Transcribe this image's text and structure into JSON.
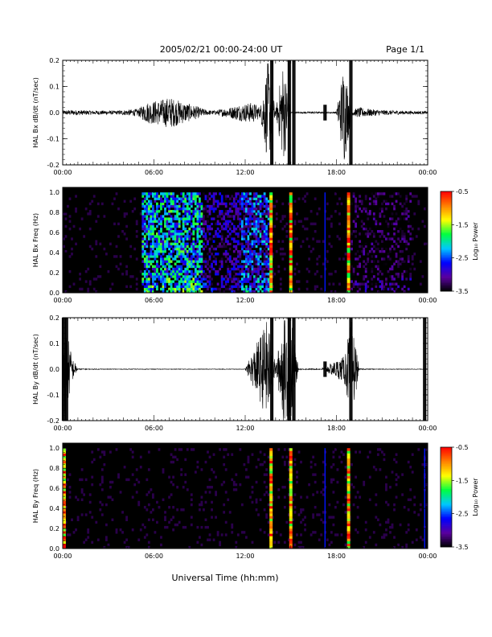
{
  "header": {
    "title": "2005/02/21  00:00-24:00 UT",
    "page": "Page 1/1"
  },
  "xlabel": "Universal Time (hh:mm)",
  "x_ticks": [
    "00:00",
    "06:00",
    "12:00",
    "18:00",
    "00:00"
  ],
  "colorbar": {
    "label": "Log₁₀ Power",
    "ticks": [
      "-0.5",
      "-1.5",
      "-2.5",
      "-3.5"
    ],
    "range": [
      -3.5,
      -0.5
    ],
    "colors": [
      "#000000",
      "#5a00a0",
      "#0000ff",
      "#00c8ff",
      "#00ff40",
      "#ffff00",
      "#ff8000",
      "#ff0000"
    ]
  },
  "chart_data": [
    {
      "type": "line",
      "panel": "bx_dbdt",
      "ylabel": "HAL Bx dB/dt (nT/sec)",
      "xlim_hours": [
        0,
        24
      ],
      "ylim": [
        -0.2,
        0.2
      ],
      "y_ticks": [
        "0.2",
        "0.1",
        "0.0",
        "-0.1",
        "-0.2"
      ],
      "series": [
        {
          "x_hours": [
            0,
            0.5,
            1,
            1.5,
            2,
            2.5,
            3,
            3.5,
            4,
            4.5,
            5,
            5.5,
            6,
            6.5,
            7,
            7.5,
            8,
            8.5,
            9,
            9.5,
            10,
            10.5,
            11,
            11.5,
            12,
            12.5,
            13,
            13.5,
            14,
            14.5,
            15,
            15.5,
            16,
            16.5,
            17,
            17.5,
            18,
            18.5,
            19,
            19.5,
            20,
            21,
            22,
            23,
            24
          ],
          "envelope": [
            0.008,
            0.01,
            0.01,
            0.009,
            0.008,
            0.008,
            0.008,
            0.007,
            0.01,
            0.012,
            0.015,
            0.04,
            0.045,
            0.05,
            0.06,
            0.05,
            0.04,
            0.03,
            0.02,
            0.01,
            0.008,
            0.015,
            0.02,
            0.03,
            0.035,
            0.04,
            0.02,
            0.2,
            0.006,
            0.2,
            0.003,
            0.003,
            0.003,
            0.004,
            0.003,
            0.003,
            0.003,
            0.2,
            0.01,
            0.02,
            0.015,
            0.01,
            0.008,
            0.006,
            0.005
          ]
        }
      ],
      "spikes_hours": [
        13.75,
        14.9,
        15.2,
        17.25,
        18.95
      ]
    },
    {
      "type": "heatmap",
      "panel": "bx_freq",
      "ylabel": "HAL Bx Freq (Hz)",
      "xlim_hours": [
        0,
        24
      ],
      "ylim": [
        0,
        1.05
      ],
      "y_ticks": [
        "1.0",
        "0.8",
        "0.6",
        "0.4",
        "0.2",
        "0.0"
      ],
      "zlim": [
        -3.5,
        -0.5
      ],
      "bands": [
        {
          "start_hour": 5.2,
          "end_hour": 9.2,
          "peak": -1.6
        },
        {
          "start_hour": 9.2,
          "end_hour": 11.8,
          "peak": -2.6
        },
        {
          "start_hour": 11.8,
          "end_hour": 13.7,
          "peak": -2.0
        },
        {
          "start_hour": 19.0,
          "end_hour": 23.0,
          "peak": -3.0
        }
      ],
      "strong_columns_hours": [
        13.7,
        15.0,
        18.8
      ],
      "weak_columns_hours": [
        17.25
      ]
    },
    {
      "type": "line",
      "panel": "by_dbdt",
      "ylabel": "HAL By dB/dt (nT/sec)",
      "xlim_hours": [
        0,
        24
      ],
      "ylim": [
        -0.2,
        0.2
      ],
      "y_ticks": [
        "0.2",
        "0.1",
        "0.0",
        "-0.1",
        "-0.2"
      ],
      "series": [
        {
          "x_hours": [
            0,
            0.3,
            0.6,
            1,
            3,
            6,
            9,
            12,
            13.5,
            14,
            14.5,
            15,
            15.5,
            17,
            18.5,
            19,
            19.5,
            21,
            23,
            24
          ],
          "envelope": [
            0.2,
            0.15,
            0.05,
            0.002,
            0.001,
            0.001,
            0.001,
            0.001,
            0.2,
            0.01,
            0.2,
            0.2,
            0.002,
            0.002,
            0.05,
            0.2,
            0.002,
            0.001,
            0.001,
            0.001
          ]
        }
      ],
      "spikes_hours": [
        0.05,
        0.25,
        13.75,
        14.9,
        15.2,
        17.25,
        18.95,
        23.8
      ]
    },
    {
      "type": "heatmap",
      "panel": "by_freq",
      "ylabel": "HAL By Freq (Hz)",
      "xlim_hours": [
        0,
        24
      ],
      "ylim": [
        0,
        1.05
      ],
      "y_ticks": [
        "1.0",
        "0.8",
        "0.6",
        "0.4",
        "0.2",
        "0.0"
      ],
      "zlim": [
        -3.5,
        -0.5
      ],
      "bands": [],
      "strong_columns_hours": [
        0.1,
        13.7,
        15.0,
        18.8
      ],
      "weak_columns_hours": [
        17.25,
        23.8
      ]
    }
  ]
}
